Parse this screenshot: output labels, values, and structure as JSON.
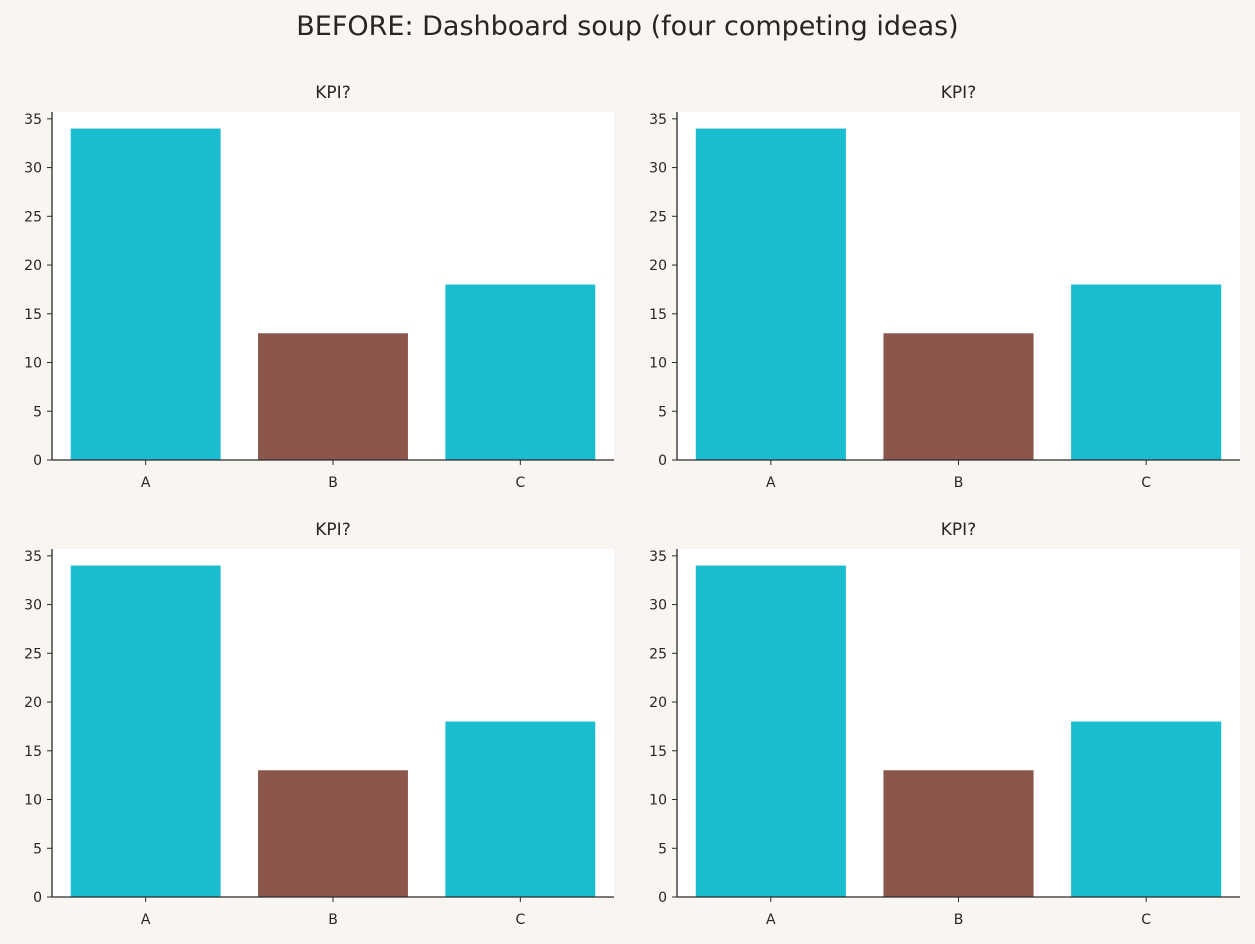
{
  "figure": {
    "title": "BEFORE: Dashboard soup (four competing ideas)"
  },
  "colors": {
    "background": "#f9f6f1",
    "plot_background": "#ffffff",
    "bar_primary": "#1abccf",
    "bar_highlight": "#8b564b",
    "axis": "#2a2a2a",
    "text": "#2a2520"
  },
  "chart_data": [
    {
      "type": "bar",
      "title": "KPI?",
      "categories": [
        "A",
        "B",
        "C"
      ],
      "values": [
        34,
        13,
        18
      ],
      "bar_colors": [
        "#1abccf",
        "#8b564b",
        "#1abccf"
      ],
      "xlabel": "",
      "ylabel": "",
      "ylim": [
        0,
        35.7
      ],
      "yticks": [
        0,
        5,
        10,
        15,
        20,
        25,
        30,
        35
      ],
      "grid": false
    },
    {
      "type": "bar",
      "title": "KPI?",
      "categories": [
        "A",
        "B",
        "C"
      ],
      "values": [
        34,
        13,
        18
      ],
      "bar_colors": [
        "#1abccf",
        "#8b564b",
        "#1abccf"
      ],
      "xlabel": "",
      "ylabel": "",
      "ylim": [
        0,
        35.7
      ],
      "yticks": [
        0,
        5,
        10,
        15,
        20,
        25,
        30,
        35
      ],
      "grid": false
    },
    {
      "type": "bar",
      "title": "KPI?",
      "categories": [
        "A",
        "B",
        "C"
      ],
      "values": [
        34,
        13,
        18
      ],
      "bar_colors": [
        "#1abccf",
        "#8b564b",
        "#1abccf"
      ],
      "xlabel": "",
      "ylabel": "",
      "ylim": [
        0,
        35.7
      ],
      "yticks": [
        0,
        5,
        10,
        15,
        20,
        25,
        30,
        35
      ],
      "grid": false
    },
    {
      "type": "bar",
      "title": "KPI?",
      "categories": [
        "A",
        "B",
        "C"
      ],
      "values": [
        34,
        13,
        18
      ],
      "bar_colors": [
        "#1abccf",
        "#8b564b",
        "#1abccf"
      ],
      "xlabel": "",
      "ylabel": "",
      "ylim": [
        0,
        35.7
      ],
      "yticks": [
        0,
        5,
        10,
        15,
        20,
        25,
        30,
        35
      ],
      "grid": false
    }
  ]
}
